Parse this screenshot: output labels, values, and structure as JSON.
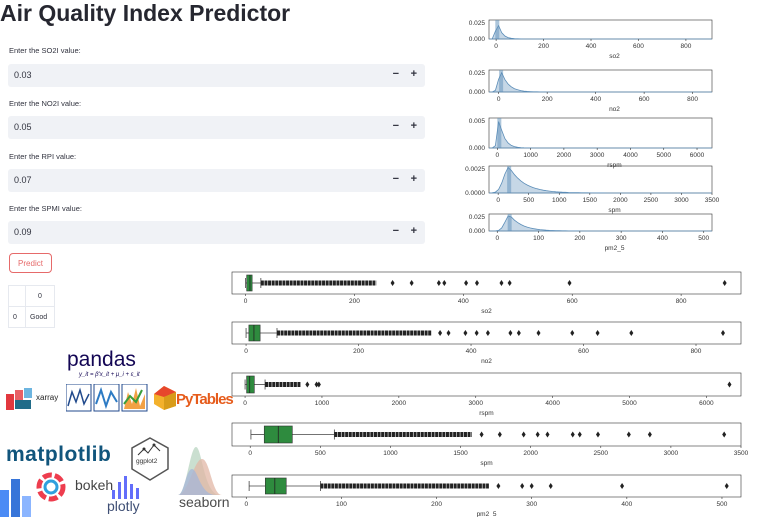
{
  "app": {
    "title": "Air Quality Index Predictor"
  },
  "form": {
    "fields": [
      {
        "label": "Enter the SO2I value:",
        "value": "0.03"
      },
      {
        "label": "Enter the NO2I value:",
        "value": "0.05"
      },
      {
        "label": "Enter the RPI value:",
        "value": "0.07"
      },
      {
        "label": "Enter the SPMI value:",
        "value": "0.09"
      }
    ],
    "minus": "−",
    "plus": "+",
    "predict_label": "Predict"
  },
  "result": {
    "header": "0",
    "index": "0",
    "value": "Good"
  },
  "chart_data": [
    {
      "type": "area",
      "xlabel": "so2",
      "x_ticks": [
        0,
        200,
        400,
        600,
        800
      ],
      "y_ticks": [
        "0.025",
        "0.000"
      ],
      "xlim": [
        -30,
        910
      ],
      "peak_x": 5,
      "spread": 18,
      "color": "#5b8db8"
    },
    {
      "type": "area",
      "xlabel": "no2",
      "x_ticks": [
        0,
        200,
        400,
        600,
        800
      ],
      "y_ticks": [
        "0.025",
        "0.000"
      ],
      "xlim": [
        -40,
        880
      ],
      "peak_x": 10,
      "spread": 30,
      "color": "#5b8db8"
    },
    {
      "type": "area",
      "xlabel": "rspm",
      "x_ticks": [
        0,
        1000,
        2000,
        3000,
        4000,
        5000,
        6000
      ],
      "y_ticks": [
        "0.005",
        "0.000"
      ],
      "xlim": [
        -250,
        6450
      ],
      "peak_x": 60,
      "spread": 150,
      "color": "#5b8db8"
    },
    {
      "type": "area",
      "xlabel": "spm",
      "x_ticks": [
        0,
        500,
        1000,
        1500,
        2000,
        2500,
        3000,
        3500
      ],
      "y_ticks": [
        "0.0025",
        "0.0000"
      ],
      "xlim": [
        -150,
        3500
      ],
      "peak_x": 180,
      "spread": 250,
      "color": "#5b8db8"
    },
    {
      "type": "area",
      "xlabel": "pm2_5",
      "x_ticks": [
        0,
        100,
        200,
        300,
        400,
        500
      ],
      "y_ticks": [
        "0.025",
        "0.000"
      ],
      "xlim": [
        -20,
        520
      ],
      "peak_x": 30,
      "spread": 30,
      "color": "#5b8db8"
    },
    {
      "type": "boxplot",
      "xlabel": "so2",
      "x_ticks": [
        0,
        200,
        400,
        600,
        800
      ],
      "xlim": [
        -25,
        910
      ],
      "q1": 2,
      "median": 8,
      "q3": 12,
      "whisker_low": 0,
      "whisker_high": 28,
      "outlier_range": [
        28,
        240
      ],
      "sparse_outliers": [
        270,
        305,
        355,
        365,
        405,
        425,
        470,
        485,
        595,
        880
      ],
      "color": "#2e8b3e"
    },
    {
      "type": "boxplot",
      "xlabel": "no2",
      "x_ticks": [
        0,
        200,
        400,
        600,
        800
      ],
      "xlim": [
        -25,
        880
      ],
      "q1": 5,
      "median": 14,
      "q3": 25,
      "whisker_low": 0,
      "whisker_high": 55,
      "outlier_range": [
        55,
        330
      ],
      "sparse_outliers": [
        345,
        360,
        390,
        410,
        430,
        470,
        485,
        520,
        580,
        625,
        685,
        848
      ],
      "color": "#2e8b3e"
    },
    {
      "type": "boxplot",
      "xlabel": "rspm",
      "x_ticks": [
        0,
        1000,
        2000,
        3000,
        4000,
        5000,
        6000
      ],
      "xlim": [
        -170,
        6450
      ],
      "q1": 20,
      "median": 60,
      "q3": 120,
      "whisker_low": 0,
      "whisker_high": 260,
      "outlier_range": [
        260,
        720
      ],
      "sparse_outliers": [
        810,
        930,
        960,
        6300
      ],
      "color": "#2e8b3e"
    },
    {
      "type": "boxplot",
      "xlabel": "spm",
      "x_ticks": [
        0,
        500,
        1000,
        1500,
        2000,
        2500,
        3000,
        3500
      ],
      "xlim": [
        -130,
        3500
      ],
      "q1": 100,
      "median": 200,
      "q3": 300,
      "whisker_low": 5,
      "whisker_high": 600,
      "outlier_range": [
        600,
        1580
      ],
      "sparse_outliers": [
        1650,
        1780,
        1950,
        2050,
        2120,
        2300,
        2350,
        2480,
        2700,
        2850,
        3380
      ],
      "color": "#2e8b3e"
    },
    {
      "type": "boxplot",
      "xlabel": "pm2_5",
      "x_ticks": [
        0,
        100,
        200,
        300,
        400,
        500
      ],
      "xlim": [
        -15,
        520
      ],
      "q1": 20,
      "median": 30,
      "q3": 42,
      "whisker_low": 3,
      "whisker_high": 78,
      "outlier_range": [
        78,
        255
      ],
      "sparse_outliers": [
        265,
        290,
        300,
        320,
        395,
        505
      ],
      "color": "#2e8b3e"
    }
  ],
  "logos": {
    "pandas": "pandas",
    "pandas_formula": "y_it = β'x_it + μ_i + ε_it",
    "xarray": "xarray",
    "pytables": "PyTables",
    "matplotlib": "matplotlib",
    "ggplot2": "ggplot2",
    "bokeh": "bokeh",
    "plotly": "plotly",
    "seaborn": "seaborn"
  }
}
